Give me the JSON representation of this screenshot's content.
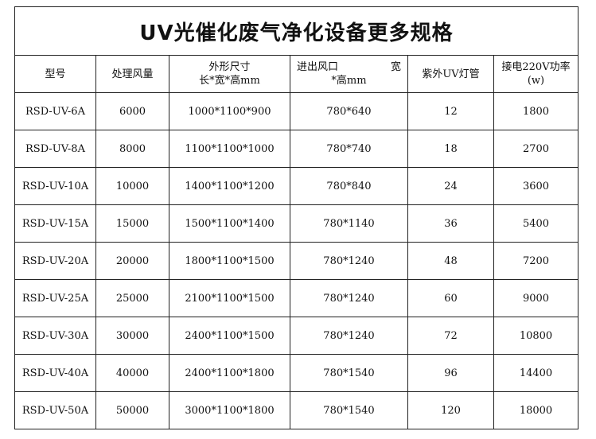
{
  "title": "UV光催化废气净化设备更多规格",
  "headers": {
    "model": "型号",
    "airflow": "处理风量",
    "size_line1": "外形尺寸",
    "size_line2": "长*宽*高mm",
    "port_line1_left": "进出风口",
    "port_line1_right": "宽",
    "port_line2": "*高mm",
    "uv_tubes": "紫外UV灯管",
    "power_line1": "接电220V功率",
    "power_line2": "(w)"
  },
  "rows": [
    {
      "model": "RSD-UV-6A",
      "airflow": "6000",
      "size": "1000*1100*900",
      "port": "780*640",
      "uv": "12",
      "power": "1800"
    },
    {
      "model": "RSD-UV-8A",
      "airflow": "8000",
      "size": "1100*1100*1000",
      "port": "780*740",
      "uv": "18",
      "power": "2700"
    },
    {
      "model": "RSD-UV-10A",
      "airflow": "10000",
      "size": "1400*1100*1200",
      "port": "780*840",
      "uv": "24",
      "power": "3600"
    },
    {
      "model": "RSD-UV-15A",
      "airflow": "15000",
      "size": "1500*1100*1400",
      "port": "780*1140",
      "uv": "36",
      "power": "5400"
    },
    {
      "model": "RSD-UV-20A",
      "airflow": "20000",
      "size": "1800*1100*1500",
      "port": "780*1240",
      "uv": "48",
      "power": "7200"
    },
    {
      "model": "RSD-UV-25A",
      "airflow": "25000",
      "size": "2100*1100*1500",
      "port": "780*1240",
      "uv": "60",
      "power": "9000"
    },
    {
      "model": "RSD-UV-30A",
      "airflow": "30000",
      "size": "2400*1100*1500",
      "port": "780*1240",
      "uv": "72",
      "power": "10800"
    },
    {
      "model": "RSD-UV-40A",
      "airflow": "40000",
      "size": "2400*1100*1800",
      "port": "780*1540",
      "uv": "96",
      "power": "14400"
    },
    {
      "model": "RSD-UV-50A",
      "airflow": "50000",
      "size": "3000*1100*1800",
      "port": "780*1540",
      "uv": "120",
      "power": "18000"
    }
  ]
}
